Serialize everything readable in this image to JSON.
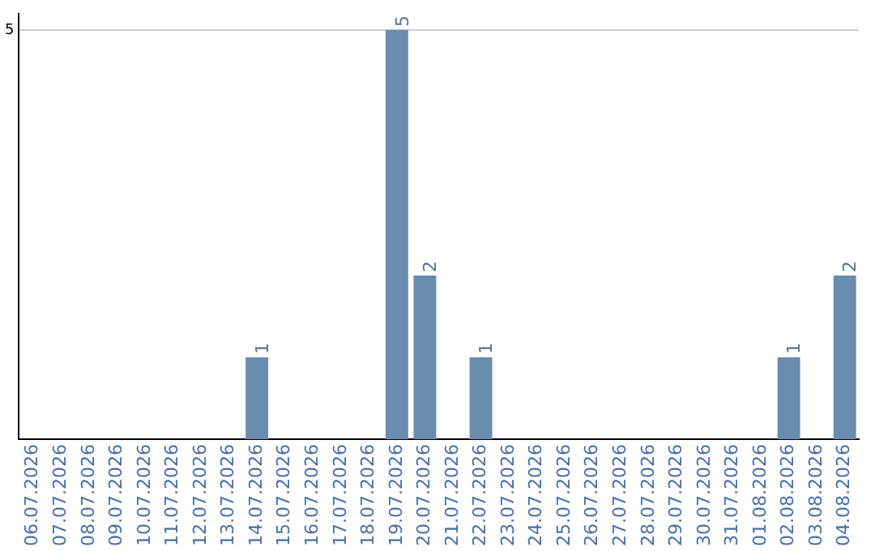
{
  "chart_data": {
    "type": "bar",
    "categories": [
      "06.07.2026",
      "07.07.2026",
      "08.07.2026",
      "09.07.2026",
      "10.07.2026",
      "11.07.2026",
      "12.07.2026",
      "13.07.2026",
      "14.07.2026",
      "15.07.2026",
      "16.07.2026",
      "17.07.2026",
      "18.07.2026",
      "19.07.2026",
      "20.07.2026",
      "21.07.2026",
      "22.07.2026",
      "23.07.2026",
      "24.07.2026",
      "25.07.2026",
      "26.07.2026",
      "27.07.2026",
      "28.07.2026",
      "29.07.2026",
      "30.07.2026",
      "31.07.2026",
      "01.08.2026",
      "02.08.2026",
      "03.08.2026",
      "04.08.2026"
    ],
    "values": [
      0,
      0,
      0,
      0,
      0,
      0,
      0,
      0,
      1,
      0,
      0,
      0,
      0,
      5,
      2,
      0,
      1,
      0,
      0,
      0,
      0,
      0,
      0,
      0,
      0,
      0,
      0,
      1,
      0,
      2
    ],
    "value_labels": [
      null,
      null,
      null,
      null,
      null,
      null,
      null,
      null,
      "1",
      null,
      null,
      null,
      null,
      "5",
      "2",
      null,
      "1",
      null,
      null,
      null,
      null,
      null,
      null,
      null,
      null,
      null,
      null,
      "1",
      null,
      "2"
    ],
    "color": "#6a8caf",
    "ylim": [
      0,
      5.2
    ],
    "yticks": [
      5
    ],
    "grid": "y",
    "legend": false
  }
}
